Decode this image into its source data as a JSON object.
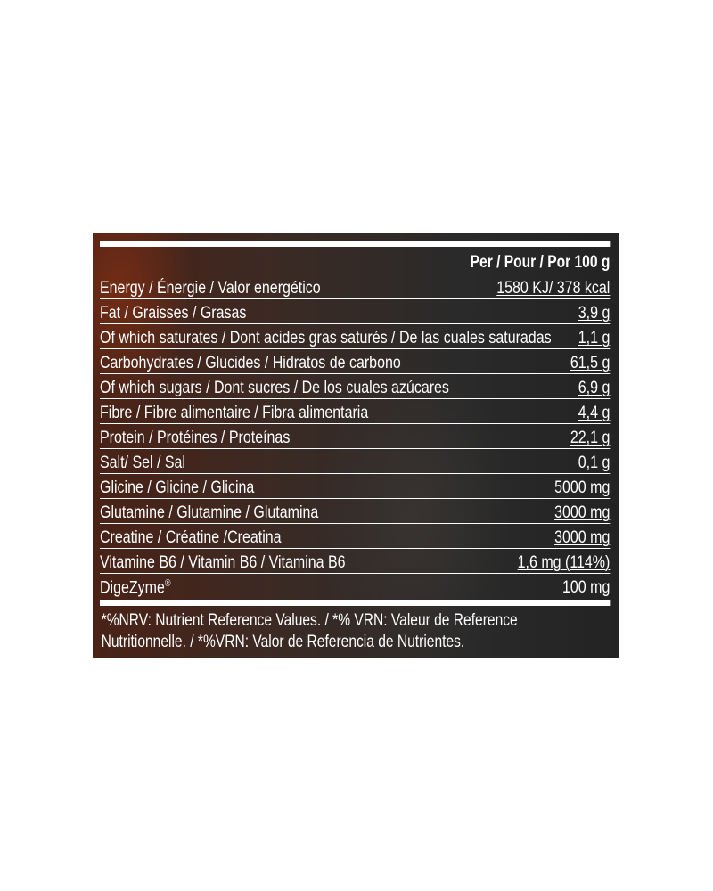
{
  "header": "Per  / Pour / Por 100 g",
  "rows": [
    {
      "label": "Energy / Énergie / Valor energético",
      "value": "1580 KJ/ 378 kcal"
    },
    {
      "label": "Fat / Graisses / Grasas",
      "value": "3,9 g"
    },
    {
      "label": "Of which saturates / Dont acides gras saturés / De las cuales saturadas",
      "value": "1,1 g"
    },
    {
      "label": "Carbohydrates / Glucides / Hidratos de carbono",
      "value": "61,5 g"
    },
    {
      "label": "Of which sugars / Dont sucres / De los cuales azúcares",
      "value": "6,9 g"
    },
    {
      "label": "Fibre / Fibre alimentaire / Fibra alimentaria",
      "value": "4,4 g"
    },
    {
      "label": "Protein / Protéines / Proteínas",
      "value": "22,1 g"
    },
    {
      "label": "Salt/ Sel / Sal",
      "value": "0,1 g"
    },
    {
      "label": "Glicine / Glicine / Glicina",
      "value": "5000 mg"
    },
    {
      "label": "Glutamine / Glutamine / Glutamina",
      "value": "3000 mg"
    },
    {
      "label": "Creatine / Créatine /Creatina",
      "value": "3000 mg"
    },
    {
      "label": "Vitamine B6 / Vitamin B6 / Vitamina B6",
      "value": "1,6 mg (114%)"
    },
    {
      "label": "DigeZyme",
      "label_sup": "®",
      "value": "100 mg"
    }
  ],
  "footnote_line1": "*%NRV: Nutrient Reference Values. / *% VRN: Valeur de Reference",
  "footnote_line2": "Nutritionnelle. / *%VRN: Valor de Referencia de Nutrientes."
}
